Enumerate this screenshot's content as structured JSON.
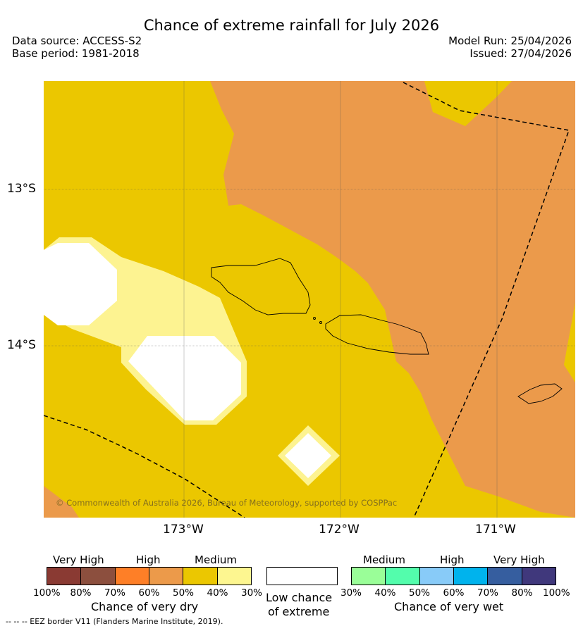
{
  "header": {
    "title": "Chance of extreme rainfall for July 2026",
    "data_source": "Data source: ACCESS-S2",
    "base_period": "Base period: 1981-2018",
    "model_run": "Model Run: 25/04/2026",
    "issued": "Issued: 27/04/2026"
  },
  "map": {
    "lat_ticks": [
      "13°S",
      "14°S"
    ],
    "lon_ticks": [
      "173°W",
      "172°W",
      "171°W"
    ],
    "copyright": "© Commonwealth of Australia 2026, Bureau of Meteorology, supported by COSPPac",
    "colors": {
      "medium_dry": "#ebc700",
      "high_dry": "#eb9a4b",
      "low_medium_dry": "#fdf391",
      "low_chance": "#ffffff"
    }
  },
  "legend": {
    "dry": {
      "categories": [
        "Very High",
        "High",
        "Medium"
      ],
      "colors": [
        "#8a3a33",
        "#8c4f3e",
        "#fe7f27",
        "#ec9a4a",
        "#ebc701",
        "#fdf690"
      ],
      "ticks": [
        "100%",
        "80%",
        "70%",
        "60%",
        "50%",
        "40%",
        "30%"
      ],
      "label": "Chance of very dry"
    },
    "low": {
      "label_line1": "Low chance",
      "label_line2": "of extreme"
    },
    "wet": {
      "categories": [
        "Medium",
        "High",
        "Very High"
      ],
      "colors": [
        "#9afe98",
        "#53fdac",
        "#88cbf8",
        "#00b3ed",
        "#365e9f",
        "#40387c"
      ],
      "ticks": [
        "30%",
        "40%",
        "50%",
        "60%",
        "70%",
        "80%",
        "100%"
      ],
      "label": "Chance of very wet"
    }
  },
  "footer": {
    "eez_note": "-- -- -- EEZ border V11 (Flanders Marine Institute, 2019)."
  }
}
